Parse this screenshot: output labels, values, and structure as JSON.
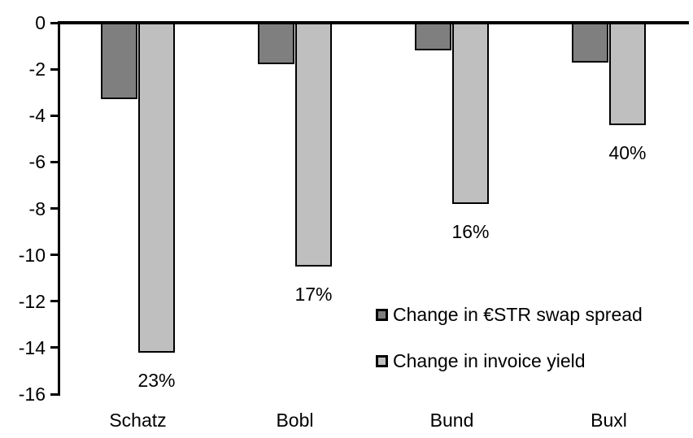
{
  "chart_data": {
    "type": "bar",
    "title": "",
    "xlabel": "",
    "ylabel": "",
    "categories": [
      "Schatz",
      "Bobl",
      "Bund",
      "Buxl"
    ],
    "series": [
      {
        "name": "Change in €STR swap spread",
        "color": "#7f7f7f",
        "values": [
          -3.3,
          -1.8,
          -1.2,
          -1.7
        ]
      },
      {
        "name": "Change in invoice yield",
        "color": "#bfbfbf",
        "values": [
          -14.2,
          -10.5,
          -7.8,
          -4.4
        ]
      }
    ],
    "bar_labels": {
      "attached_to_series": "Change in invoice yield",
      "values": [
        "23%",
        "17%",
        "16%",
        "40%"
      ]
    },
    "yticks": [
      "0",
      "-2",
      "-4",
      "-6",
      "-8",
      "-10",
      "-12",
      "-14",
      "-16"
    ],
    "ylim": [
      -16,
      0
    ],
    "grid": false,
    "legend_position": "inside-right",
    "bar_border_color": "#000000",
    "axis_color": "#000000",
    "background_color": "#ffffff"
  },
  "legend": {
    "items": [
      {
        "label": "Change in €STR swap spread"
      },
      {
        "label": "Change in invoice yield"
      }
    ]
  }
}
